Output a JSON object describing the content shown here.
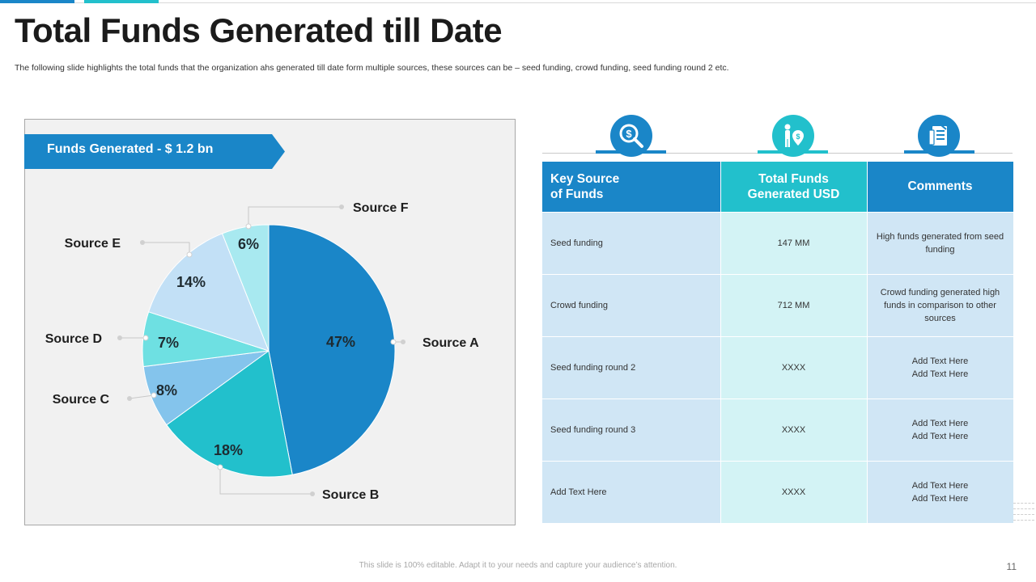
{
  "slide": {
    "title": "Total Funds Generated till Date",
    "subtitle": "The following slide highlights the total funds that the organization ahs generated till date form multiple sources, these sources can be – seed funding, crowd funding, seed funding round 2 etc.",
    "footer": "This slide is 100% editable. Adapt it to your needs and capture your audience’s attention.",
    "page_number": "11"
  },
  "banner": {
    "label": "Funds Generated - $ 1.2 bn",
    "color": "#1a86c8"
  },
  "chart_data": {
    "type": "pie",
    "title": "",
    "slices": [
      {
        "label": "Source A",
        "value": 47,
        "display": "47%",
        "color": "#1a86c8"
      },
      {
        "label": "Source B",
        "value": 18,
        "display": "18%",
        "color": "#22c0cc"
      },
      {
        "label": "Source C",
        "value": 8,
        "display": "8%",
        "color": "#84c4ec"
      },
      {
        "label": "Source D",
        "value": 7,
        "display": "7%",
        "color": "#6ee0e2"
      },
      {
        "label": "Source E",
        "value": 14,
        "display": "14%",
        "color": "#c2e0f6"
      },
      {
        "label": "Source F",
        "value": 6,
        "display": "6%",
        "color": "#a8e9f0"
      }
    ],
    "start": "12 o'clock",
    "direction": "clockwise"
  },
  "table": {
    "icons": [
      {
        "name": "magnifier-dollar-icon",
        "color": "#1a86c8"
      },
      {
        "name": "person-money-pin-icon",
        "color": "#22c0cc"
      },
      {
        "name": "document-list-icon",
        "color": "#1a86c8"
      }
    ],
    "headers": [
      "Key Source\n of Funds",
      "Total Funds\nGenerated USD",
      "Comments"
    ],
    "rows": [
      {
        "source": "Seed funding",
        "total": "147 MM",
        "comment": "High funds generated  from seed funding"
      },
      {
        "source": "Crowd funding",
        "total": "712 MM",
        "comment": "Crowd funding generated high funds in comparison to other sources"
      },
      {
        "source": "Seed funding round 2",
        "total": "XXXX",
        "comment": "Add Text Here\nAdd Text Here"
      },
      {
        "source": "Seed funding round 3",
        "total": "XXXX",
        "comment": "Add Text Here\nAdd Text Here"
      },
      {
        "source": "Add Text Here",
        "total": "XXXX",
        "comment": "Add Text Here\nAdd Text Here"
      }
    ]
  }
}
